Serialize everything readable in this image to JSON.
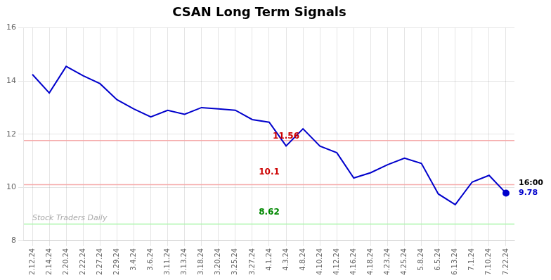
{
  "chart_data": {
    "type": "line",
    "title": "CSAN Long Term Signals",
    "categories": [
      "2.12.24",
      "2.14.24",
      "2.20.24",
      "2.22.24",
      "2.27.24",
      "2.29.24",
      "3.4.24",
      "3.6.24",
      "3.11.24",
      "3.13.24",
      "3.18.24",
      "3.20.24",
      "3.25.24",
      "3.27.24",
      "4.1.24",
      "4.3.24",
      "4.8.24",
      "4.10.24",
      "4.12.24",
      "4.16.24",
      "4.18.24",
      "4.23.24",
      "4.25.24",
      "5.8.24",
      "6.5.24",
      "6.13.24",
      "7.1.24",
      "7.10.24",
      "7.22.24"
    ],
    "values": [
      14.25,
      13.55,
      14.55,
      14.2,
      13.9,
      13.3,
      12.95,
      12.65,
      12.9,
      12.75,
      13.0,
      12.95,
      12.9,
      12.55,
      12.45,
      11.56,
      12.2,
      11.55,
      11.3,
      10.35,
      10.55,
      10.85,
      11.1,
      10.9,
      9.75,
      9.35,
      10.2,
      10.45,
      9.78
    ],
    "color": "#0000cc",
    "marker": "circle",
    "ylim": [
      8,
      16
    ],
    "yticks": [
      8,
      10,
      12,
      14,
      16
    ],
    "grid": true,
    "hlines": [
      {
        "value": 11.76,
        "color": "#f5aaaa"
      },
      {
        "value": 10.1,
        "color": "#f5aaaa"
      },
      {
        "value": 8.62,
        "color": "#aaf5aa"
      }
    ],
    "annotations": [
      {
        "text": "11.56",
        "color": "#cc0000",
        "category": "4.3.24",
        "y": 11.75
      },
      {
        "text": "10.1",
        "color": "#cc0000",
        "category": "4.1.24",
        "y": 10.4
      },
      {
        "text": "8.62",
        "color": "#008800",
        "category": "4.1.24",
        "y": 8.9
      }
    ],
    "end_labels": [
      {
        "text": "16:00",
        "color": "#000000"
      },
      {
        "text": "9.78",
        "color": "#0000cc"
      }
    ],
    "watermark": {
      "text": "Stock Traders Daily",
      "color": "#aaaaaa"
    }
  }
}
